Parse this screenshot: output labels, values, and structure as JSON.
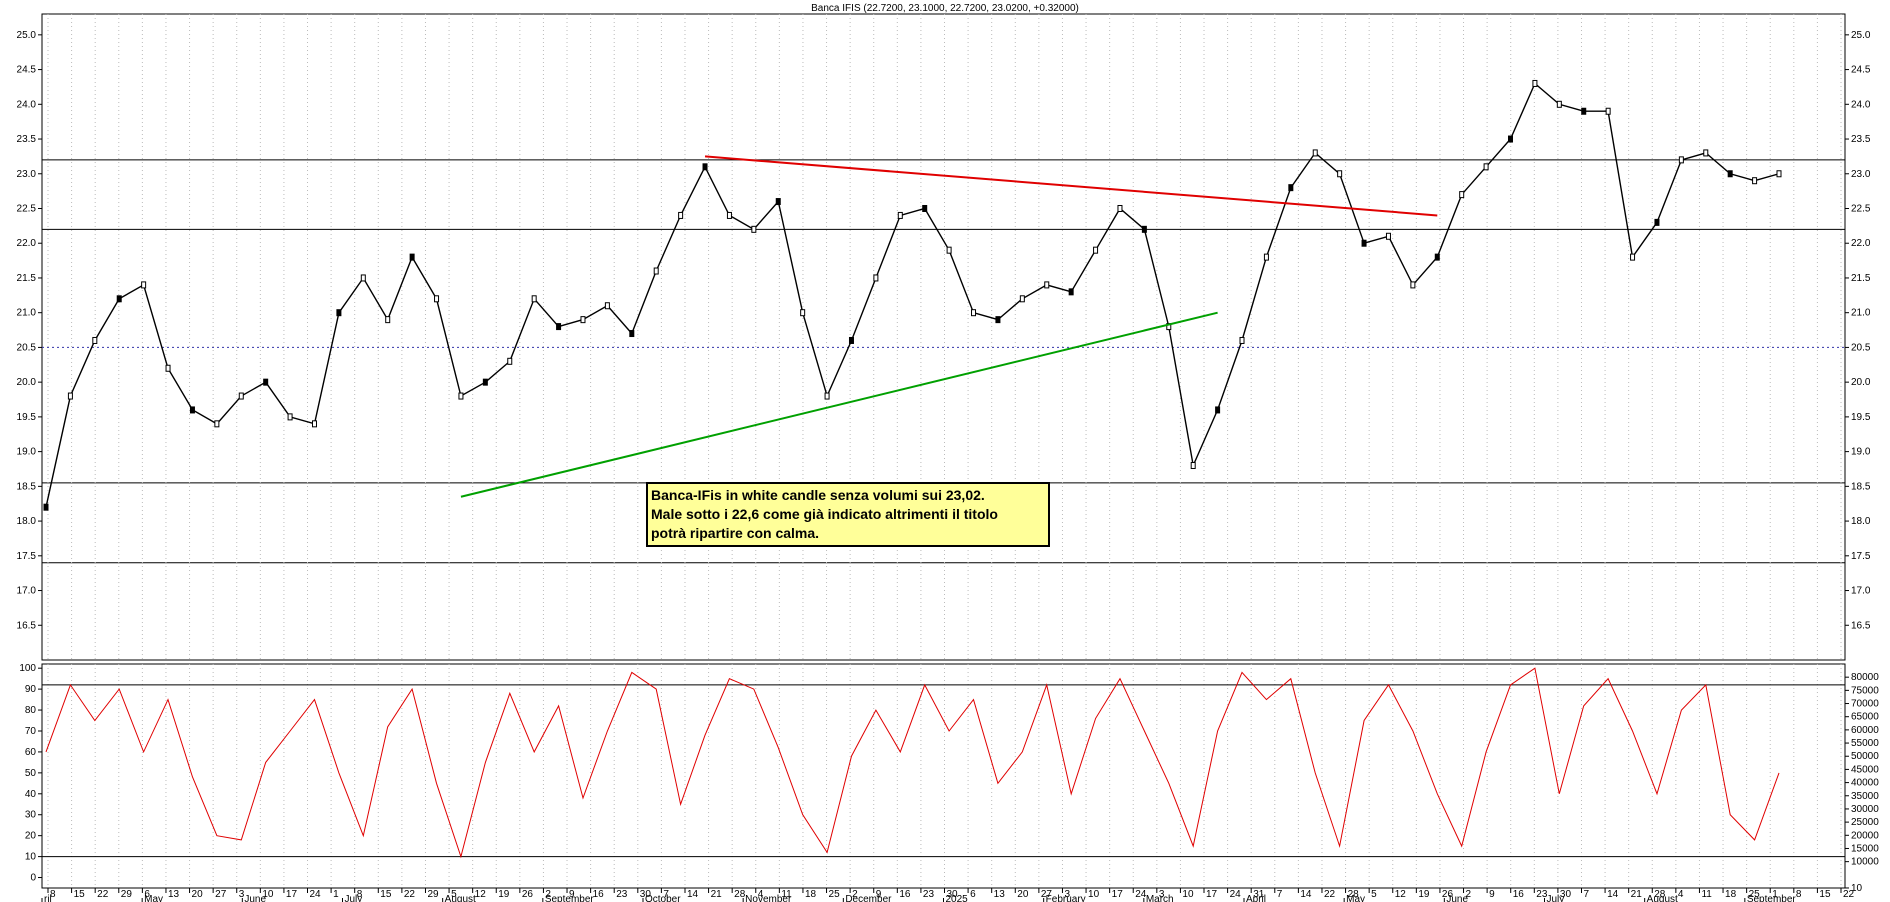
{
  "chart_data": {
    "title": "Banca IFIS (22.7200, 23.1000, 22.7200, 23.0200, +0.32000)",
    "note": "Banca-IFis in white candle senza volumi sui 23,02.\nMale sotto i 22,6 come già indicato altrimenti il titolo\npotrà ripartire con calma.",
    "price_panel": {
      "type": "line",
      "ylim": [
        16.0,
        25.3
      ],
      "y_ticks": [
        16.5,
        17.0,
        17.5,
        18.0,
        18.5,
        19.0,
        19.5,
        20.0,
        20.5,
        21.0,
        21.5,
        22.0,
        22.5,
        23.0,
        23.5,
        24.0,
        24.5,
        25.0
      ],
      "horizontal_levels": [
        17.4,
        18.55,
        22.2,
        23.2
      ],
      "dotted_level": 20.5,
      "series": [
        {
          "values": [
            18.2,
            19.8,
            20.6,
            21.2,
            21.4,
            20.2,
            19.6,
            19.4,
            19.8,
            20.0,
            19.5,
            19.4,
            21.0,
            21.5,
            20.9,
            21.8,
            21.2,
            19.8,
            20.0,
            20.3,
            21.2,
            20.8,
            20.9,
            21.1,
            20.7,
            21.6,
            22.4,
            23.1,
            22.4,
            22.2,
            22.6,
            21.0,
            19.8,
            20.6,
            21.5,
            22.4,
            22.5,
            21.9,
            21.0,
            20.9,
            21.2,
            21.4,
            21.3,
            21.9,
            22.5,
            22.2,
            20.8,
            18.8,
            19.6,
            20.6,
            21.8,
            22.8,
            23.3,
            23.0,
            22.0,
            22.1,
            21.4,
            21.8,
            22.7,
            23.1,
            23.5,
            24.3,
            24.0,
            23.9,
            23.9,
            21.8,
            22.3,
            23.2,
            23.3,
            23.0,
            22.9,
            23.0
          ]
        }
      ]
    },
    "oscillator_panel": {
      "type": "line",
      "ylim": [
        -5,
        102
      ],
      "y_ticks": [
        0,
        10,
        20,
        30,
        40,
        50,
        60,
        70,
        80,
        90,
        100
      ],
      "bands": [
        10,
        92
      ],
      "series": [
        {
          "values": [
            60,
            92,
            75,
            90,
            60,
            85,
            48,
            20,
            18,
            55,
            70,
            85,
            50,
            20,
            72,
            90,
            45,
            10,
            55,
            88,
            60,
            82,
            38,
            70,
            98,
            90,
            35,
            68,
            95,
            90,
            62,
            30,
            12,
            58,
            80,
            60,
            92,
            70,
            85,
            45,
            60,
            92,
            40,
            76,
            95,
            70,
            45,
            15,
            70,
            98,
            85,
            95,
            50,
            15,
            75,
            92,
            70,
            40,
            15,
            60,
            92,
            100,
            40,
            82,
            95,
            70,
            40,
            80,
            92,
            30,
            18,
            50
          ]
        }
      ]
    },
    "volume_axis": {
      "ylim": [
        0,
        85000
      ],
      "ticks": [
        "10",
        "10000",
        "15000",
        "20000",
        "25000",
        "30000",
        "35000",
        "40000",
        "45000",
        "50000",
        "55000",
        "60000",
        "65000",
        "70000",
        "75000",
        "80000"
      ]
    },
    "x_axis": {
      "ticks": [
        "8",
        "15",
        "22",
        "29",
        "6",
        "13",
        "20",
        "27",
        "3",
        "10",
        "17",
        "24",
        "1",
        "8",
        "15",
        "22",
        "29",
        "5",
        "12",
        "19",
        "26",
        "2",
        "9",
        "16",
        "23",
        "30",
        "7",
        "14",
        "21",
        "28",
        "4",
        "11",
        "18",
        "25",
        "2",
        "9",
        "16",
        "23",
        "30",
        "6",
        "13",
        "20",
        "27",
        "3",
        "10",
        "17",
        "24",
        "3",
        "10",
        "17",
        "24",
        "31",
        "7",
        "14",
        "22",
        "28",
        "5",
        "12",
        "19",
        "26",
        "2",
        "9",
        "16",
        "23",
        "30",
        "7",
        "14",
        "21",
        "28",
        "4",
        "11",
        "18",
        "25",
        "1",
        "8",
        "15",
        "22"
      ],
      "months": [
        "ril",
        "May",
        "June",
        "July",
        "August",
        "September",
        "October",
        "November",
        "December",
        "2025",
        "February",
        "March",
        "April",
        "May",
        "June",
        "July",
        "August",
        "September"
      ]
    }
  }
}
